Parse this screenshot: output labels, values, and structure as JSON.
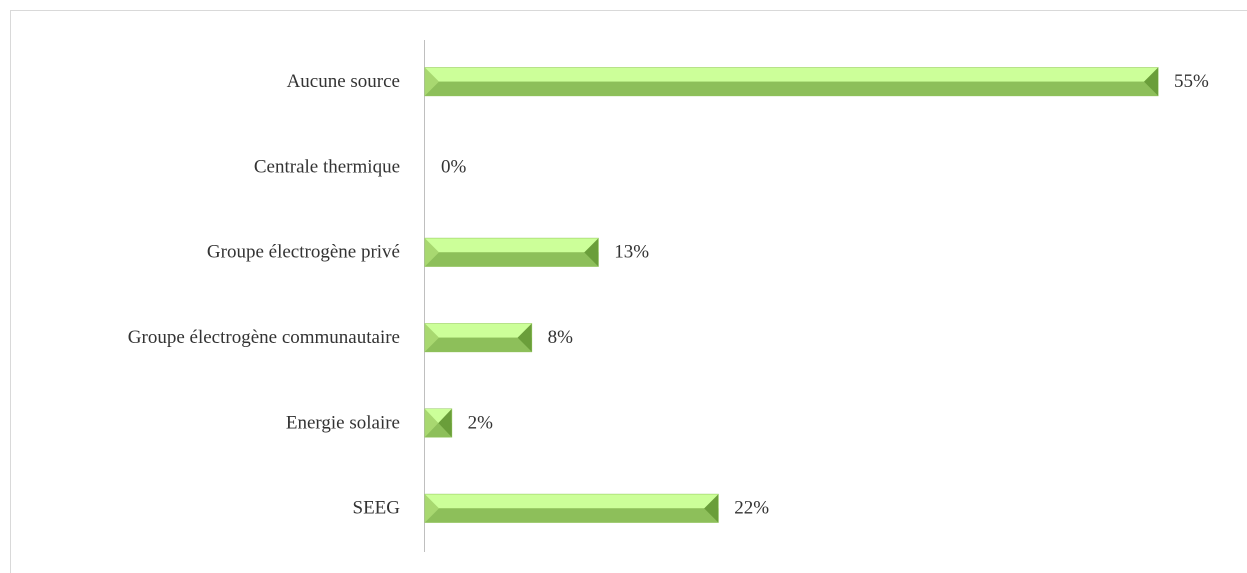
{
  "chart_data": {
    "type": "bar",
    "orientation": "horizontal",
    "categories": [
      "Aucune source",
      "Centrale thermique",
      "Groupe électrogène privé",
      "Groupe électrogène communautaire",
      "Energie solaire",
      "SEEG"
    ],
    "values": [
      55,
      0,
      13,
      8,
      2,
      22
    ],
    "value_labels": [
      "55%",
      "0%",
      "13%",
      "8%",
      "2%",
      "22%"
    ],
    "color": "#92c45c"
  }
}
